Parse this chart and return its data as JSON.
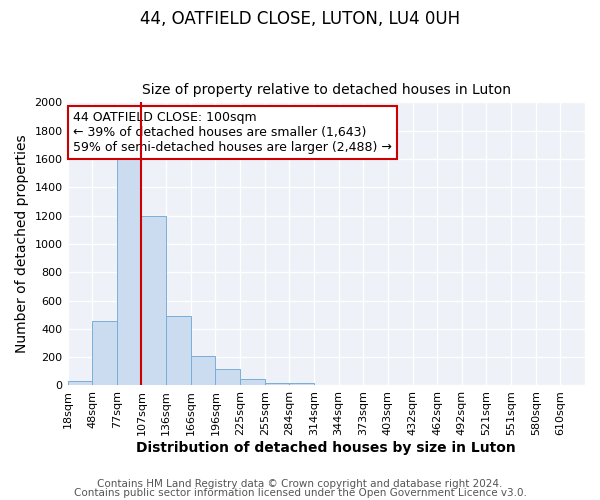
{
  "title": "44, OATFIELD CLOSE, LUTON, LU4 0UH",
  "subtitle": "Size of property relative to detached houses in Luton",
  "xlabel": "Distribution of detached houses by size in Luton",
  "ylabel": "Number of detached properties",
  "bar_values": [
    30,
    455,
    1600,
    1200,
    490,
    210,
    115,
    45,
    20,
    15,
    0,
    0,
    0,
    0,
    0,
    0,
    0,
    0,
    0,
    0
  ],
  "bar_labels": [
    "18sqm",
    "48sqm",
    "77sqm",
    "107sqm",
    "136sqm",
    "166sqm",
    "196sqm",
    "225sqm",
    "255sqm",
    "284sqm",
    "314sqm",
    "344sqm",
    "373sqm",
    "403sqm",
    "432sqm",
    "462sqm",
    "492sqm",
    "521sqm",
    "551sqm",
    "580sqm",
    "610sqm"
  ],
  "ylim": [
    0,
    2000
  ],
  "yticks": [
    0,
    200,
    400,
    600,
    800,
    1000,
    1200,
    1400,
    1600,
    1800,
    2000
  ],
  "bar_color": "#ccdcf0",
  "bar_edge_color": "#7aaed6",
  "vline_x_label": "107sqm",
  "vline_color": "#cc0000",
  "annotation_title": "44 OATFIELD CLOSE: 100sqm",
  "annotation_line1": "← 39% of detached houses are smaller (1,643)",
  "annotation_line2": "59% of semi-detached houses are larger (2,488) →",
  "annotation_box_color": "#ffffff",
  "annotation_box_edge": "#cc0000",
  "footer_line1": "Contains HM Land Registry data © Crown copyright and database right 2024.",
  "footer_line2": "Contains public sector information licensed under the Open Government Licence v3.0.",
  "plot_bg_color": "#eef2f8",
  "fig_bg_color": "#ffffff",
  "grid_color": "#ffffff",
  "title_fontsize": 12,
  "subtitle_fontsize": 10,
  "axis_label_fontsize": 10,
  "tick_fontsize": 8,
  "annotation_fontsize": 9,
  "footer_fontsize": 7.5
}
